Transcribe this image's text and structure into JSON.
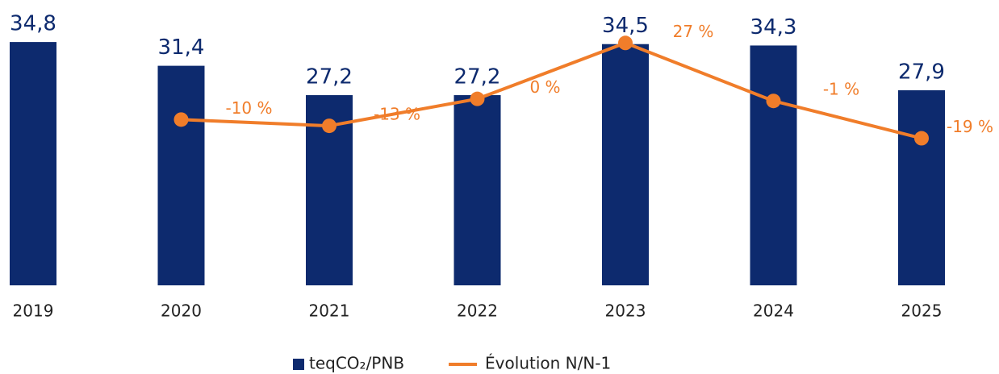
{
  "chart_data": {
    "type": "bar",
    "categories": [
      "2019",
      "2020",
      "2021",
      "2022",
      "2023",
      "2024",
      "2025"
    ],
    "ylim": [
      0,
      40
    ],
    "y2lim": [
      -90,
      45
    ],
    "series": [
      {
        "name": "teqCO₂/PNB",
        "type": "bar",
        "color": "#0d2a6e",
        "values": [
          34.8,
          31.4,
          27.2,
          27.2,
          34.5,
          34.3,
          27.9
        ],
        "value_labels": [
          "34,8",
          "31,4",
          "27,2",
          "27,2",
          "34,5",
          "34,3",
          "27,9"
        ]
      },
      {
        "name": "Évolution N/N-1",
        "type": "line",
        "axis": "y2",
        "color": "#f07d2a",
        "values": [
          null,
          -10,
          -13,
          0,
          27,
          -1,
          -19
        ],
        "value_labels": [
          null,
          "-10 %",
          "-13 %",
          "0 %",
          "27 %",
          "-1 %",
          "-19 %"
        ]
      }
    ],
    "legend": "bottom"
  }
}
